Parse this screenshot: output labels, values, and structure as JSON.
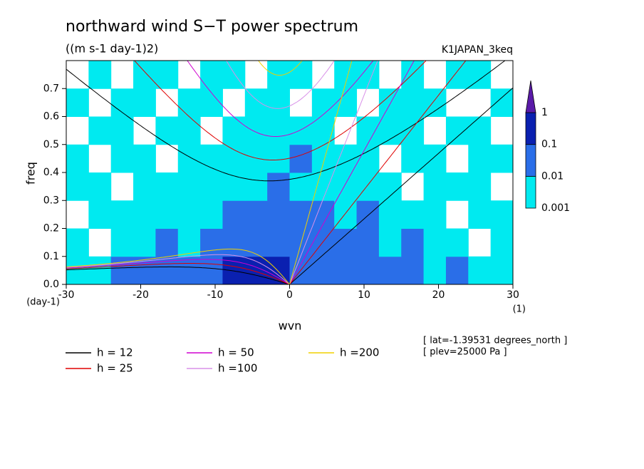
{
  "chart_data": {
    "type": "spectrum",
    "title": "northward wind S−T power spectrum",
    "subtitle": "((m s-1 day-1)2)",
    "dataset": "K1JAPAN_3keq",
    "x_label": "wvn",
    "y_label": "freq",
    "x_unit": "(1)",
    "y_unit": "(day-1)",
    "notes": [
      "[ lat=-1.39531 degrees_north ]",
      "[ plev=25000 Pa ]"
    ],
    "xlim": [
      -30,
      30
    ],
    "xticks": [
      -30,
      -20,
      -10,
      0,
      10,
      20,
      30
    ],
    "ylim": [
      0,
      0.8
    ],
    "yticks": [
      {
        "value": 0,
        "label": "0.0"
      },
      0.1,
      0.2,
      0.3,
      0.4,
      0.5,
      0.6,
      0.7
    ],
    "levels": [
      0.001,
      0.01,
      0.1,
      1
    ],
    "level_colors": [
      "#00eaf0",
      "#2a6ee8",
      "#0a20b0",
      "#5a1aa8"
    ],
    "z": [
      [
        0.001,
        0.001,
        0.01,
        0.01,
        0.01,
        0.01,
        0.01,
        0.1,
        0.1,
        0.1,
        0.01,
        0.01,
        0.01,
        0.01,
        0.01,
        0.01,
        0.001,
        0.01,
        0.001,
        0.001
      ],
      [
        0.001,
        null,
        0.001,
        0.001,
        0.01,
        0.001,
        0.01,
        0.01,
        0.01,
        0.01,
        0.01,
        0.01,
        0.01,
        0.01,
        0.001,
        0.01,
        0.001,
        0.001,
        null,
        0.001
      ],
      [
        null,
        0.001,
        0.001,
        0.001,
        0.001,
        0.001,
        0.001,
        0.01,
        0.01,
        0.01,
        0.01,
        0.01,
        0.001,
        0.01,
        0.001,
        0.001,
        0.001,
        null,
        0.001,
        0.001
      ],
      [
        0.001,
        0.001,
        null,
        0.001,
        0.001,
        0.001,
        0.001,
        0.001,
        0.001,
        0.01,
        0.001,
        0.001,
        0.001,
        0.001,
        0.001,
        null,
        0.001,
        0.001,
        0.001,
        null
      ],
      [
        0.001,
        null,
        0.001,
        0.001,
        null,
        0.001,
        0.001,
        0.001,
        0.001,
        0.001,
        0.01,
        0.001,
        0.001,
        0.001,
        null,
        0.001,
        0.001,
        null,
        0.001,
        0.001
      ],
      [
        null,
        0.001,
        0.001,
        null,
        0.001,
        0.001,
        null,
        0.001,
        0.001,
        0.001,
        0.001,
        0.001,
        null,
        0.001,
        0.001,
        0.001,
        null,
        0.001,
        0.001,
        null
      ],
      [
        0.001,
        null,
        0.001,
        0.001,
        null,
        0.001,
        0.001,
        null,
        0.001,
        0.001,
        null,
        0.001,
        0.001,
        null,
        0.001,
        0.001,
        0.001,
        null,
        null,
        0.001
      ],
      [
        null,
        0.001,
        null,
        0.001,
        0.001,
        null,
        0.001,
        0.001,
        null,
        0.001,
        0.001,
        null,
        0.001,
        0.001,
        null,
        0.001,
        null,
        0.001,
        0.001,
        null
      ]
    ],
    "series": [
      {
        "name": "h = 12",
        "color": "#000000"
      },
      {
        "name": "h = 25",
        "color": "#e00000"
      },
      {
        "name": "h = 50",
        "color": "#d000d0"
      },
      {
        "name": "h =100",
        "color": "#d890e8"
      },
      {
        "name": "h =200",
        "color": "#f0d000"
      }
    ]
  }
}
